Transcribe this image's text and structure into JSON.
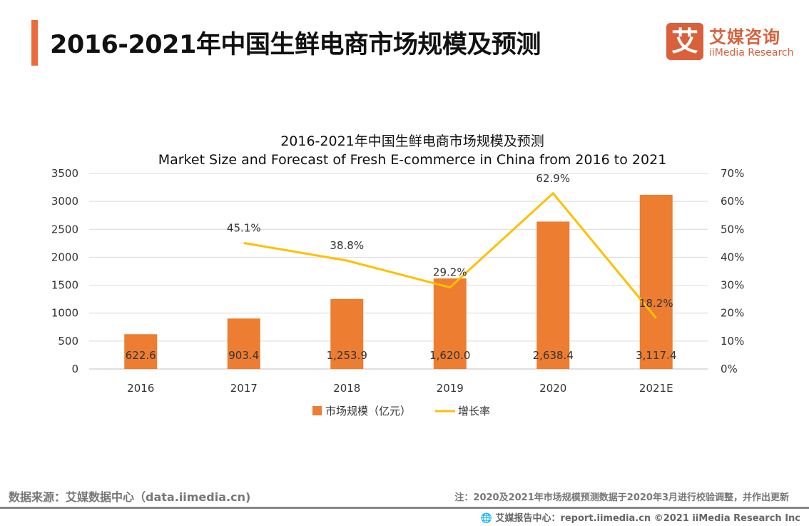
{
  "header": {
    "title": "2016-2021年中国生鲜电商市场规模及预测"
  },
  "logo": {
    "mark": "艾",
    "name_cn": "艾媒咨询",
    "name_en": "iiMedia Research"
  },
  "chart_data": {
    "type": "bar+line",
    "title": "2016-2021年中国生鲜电商市场规模及预测",
    "subtitle": "Market Size and Forecast of Fresh E-commerce in China from 2016 to 2021",
    "categories": [
      "2016",
      "2017",
      "2018",
      "2019",
      "2020",
      "2021E"
    ],
    "series": [
      {
        "name": "市场规模（亿元）",
        "type": "bar",
        "axis": "left",
        "color": "#ED7D31",
        "values": [
          622.6,
          903.4,
          1253.9,
          1620.0,
          2638.4,
          3117.4
        ],
        "labels": [
          "622.6",
          "903.4",
          "1,253.9",
          "1,620.0",
          "2,638.4",
          "3,117.4"
        ]
      },
      {
        "name": "增长率",
        "type": "line",
        "axis": "right",
        "color": "#FFC000",
        "values": [
          null,
          45.1,
          38.8,
          29.2,
          62.9,
          18.2
        ],
        "labels": [
          "",
          "45.1%",
          "38.8%",
          "29.2%",
          "62.9%",
          "18.2%"
        ]
      }
    ],
    "y_left": {
      "range": [
        0,
        3500
      ],
      "ticks": [
        "0",
        "500",
        "1000",
        "1500",
        "2000",
        "2500",
        "3000",
        "3500"
      ]
    },
    "y_right": {
      "range": [
        0,
        70
      ],
      "ticks": [
        "0%",
        "10%",
        "20%",
        "30%",
        "40%",
        "50%",
        "60%",
        "70%"
      ]
    },
    "grid": true,
    "legend": "bottom"
  },
  "footer": {
    "source": "数据来源：艾媒数据中心（data.iimedia.cn)",
    "note": "注：2020及2021年市场规模预测数据于2020年3月进行校验调整，并作出更新",
    "report": "艾媒报告中心：report.iimedia.cn   ©2021  iiMedia Research  Inc"
  }
}
